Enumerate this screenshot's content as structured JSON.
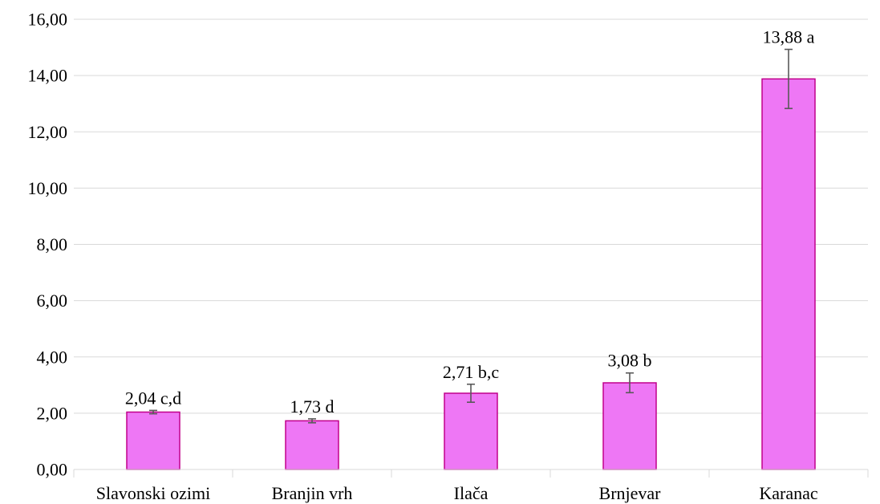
{
  "chart_data": {
    "type": "bar",
    "categories": [
      "Slavonski ozimi",
      "Branjin vrh",
      "Ilača",
      "Brnjevar",
      "Karanac"
    ],
    "values": [
      2.04,
      1.73,
      2.71,
      3.08,
      13.88
    ],
    "errors": [
      0.06,
      0.07,
      0.32,
      0.35,
      1.05
    ],
    "data_labels": [
      "2,04 c,d",
      "1,73 d",
      "2,71 b,c",
      "3,08 b",
      "13,88 a"
    ],
    "ylim": [
      0,
      16
    ],
    "ytick_values": [
      0,
      2,
      4,
      6,
      8,
      10,
      12,
      14,
      16
    ],
    "ytick_labels": [
      "0,00",
      "2,00",
      "4,00",
      "6,00",
      "8,00",
      "10,00",
      "12,00",
      "14,00",
      "16,00"
    ],
    "grid": true,
    "legend": "none",
    "bar_fill": "#ee77f5",
    "bar_stroke": "#c0008c",
    "errorbar_color": "#595959",
    "title": "",
    "xlabel": "",
    "ylabel": ""
  }
}
